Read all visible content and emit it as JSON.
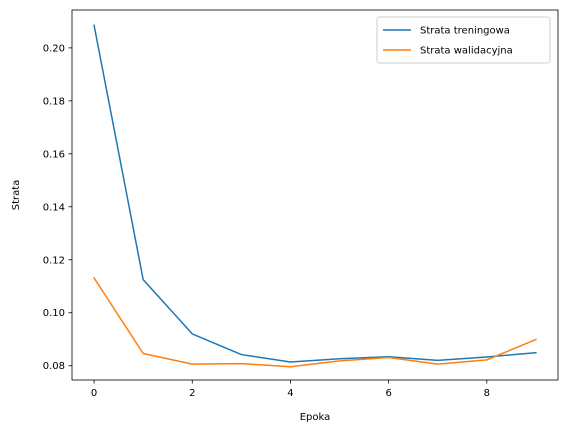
{
  "chart_data": {
    "type": "line",
    "xlabel": "Epoka",
    "ylabel": "Strata",
    "xlim": [
      -0.45,
      9.45
    ],
    "ylim": [
      0.0746,
      0.2143
    ],
    "xticks": [
      0,
      2,
      4,
      6,
      8
    ],
    "yticks": [
      0.08,
      0.1,
      0.12,
      0.14,
      0.16,
      0.18,
      0.2
    ],
    "xtick_labels": [
      "0",
      "2",
      "4",
      "6",
      "8"
    ],
    "ytick_labels": [
      "0.08",
      "0.10",
      "0.12",
      "0.14",
      "0.16",
      "0.18",
      "0.20"
    ],
    "grid": false,
    "legend_position": "top-right",
    "x": [
      0,
      1,
      2,
      3,
      4,
      5,
      6,
      7,
      8,
      9
    ],
    "series": [
      {
        "name": "Strata treningowa",
        "color": "#1f77b4",
        "values": [
          0.2085,
          0.1125,
          0.092,
          0.0842,
          0.0814,
          0.0826,
          0.0834,
          0.082,
          0.0833,
          0.0849
        ]
      },
      {
        "name": "Strata walidacyjna",
        "color": "#ff7f0e",
        "values": [
          0.1131,
          0.0846,
          0.0806,
          0.0808,
          0.0796,
          0.0818,
          0.0831,
          0.0806,
          0.0822,
          0.0899
        ]
      }
    ]
  }
}
